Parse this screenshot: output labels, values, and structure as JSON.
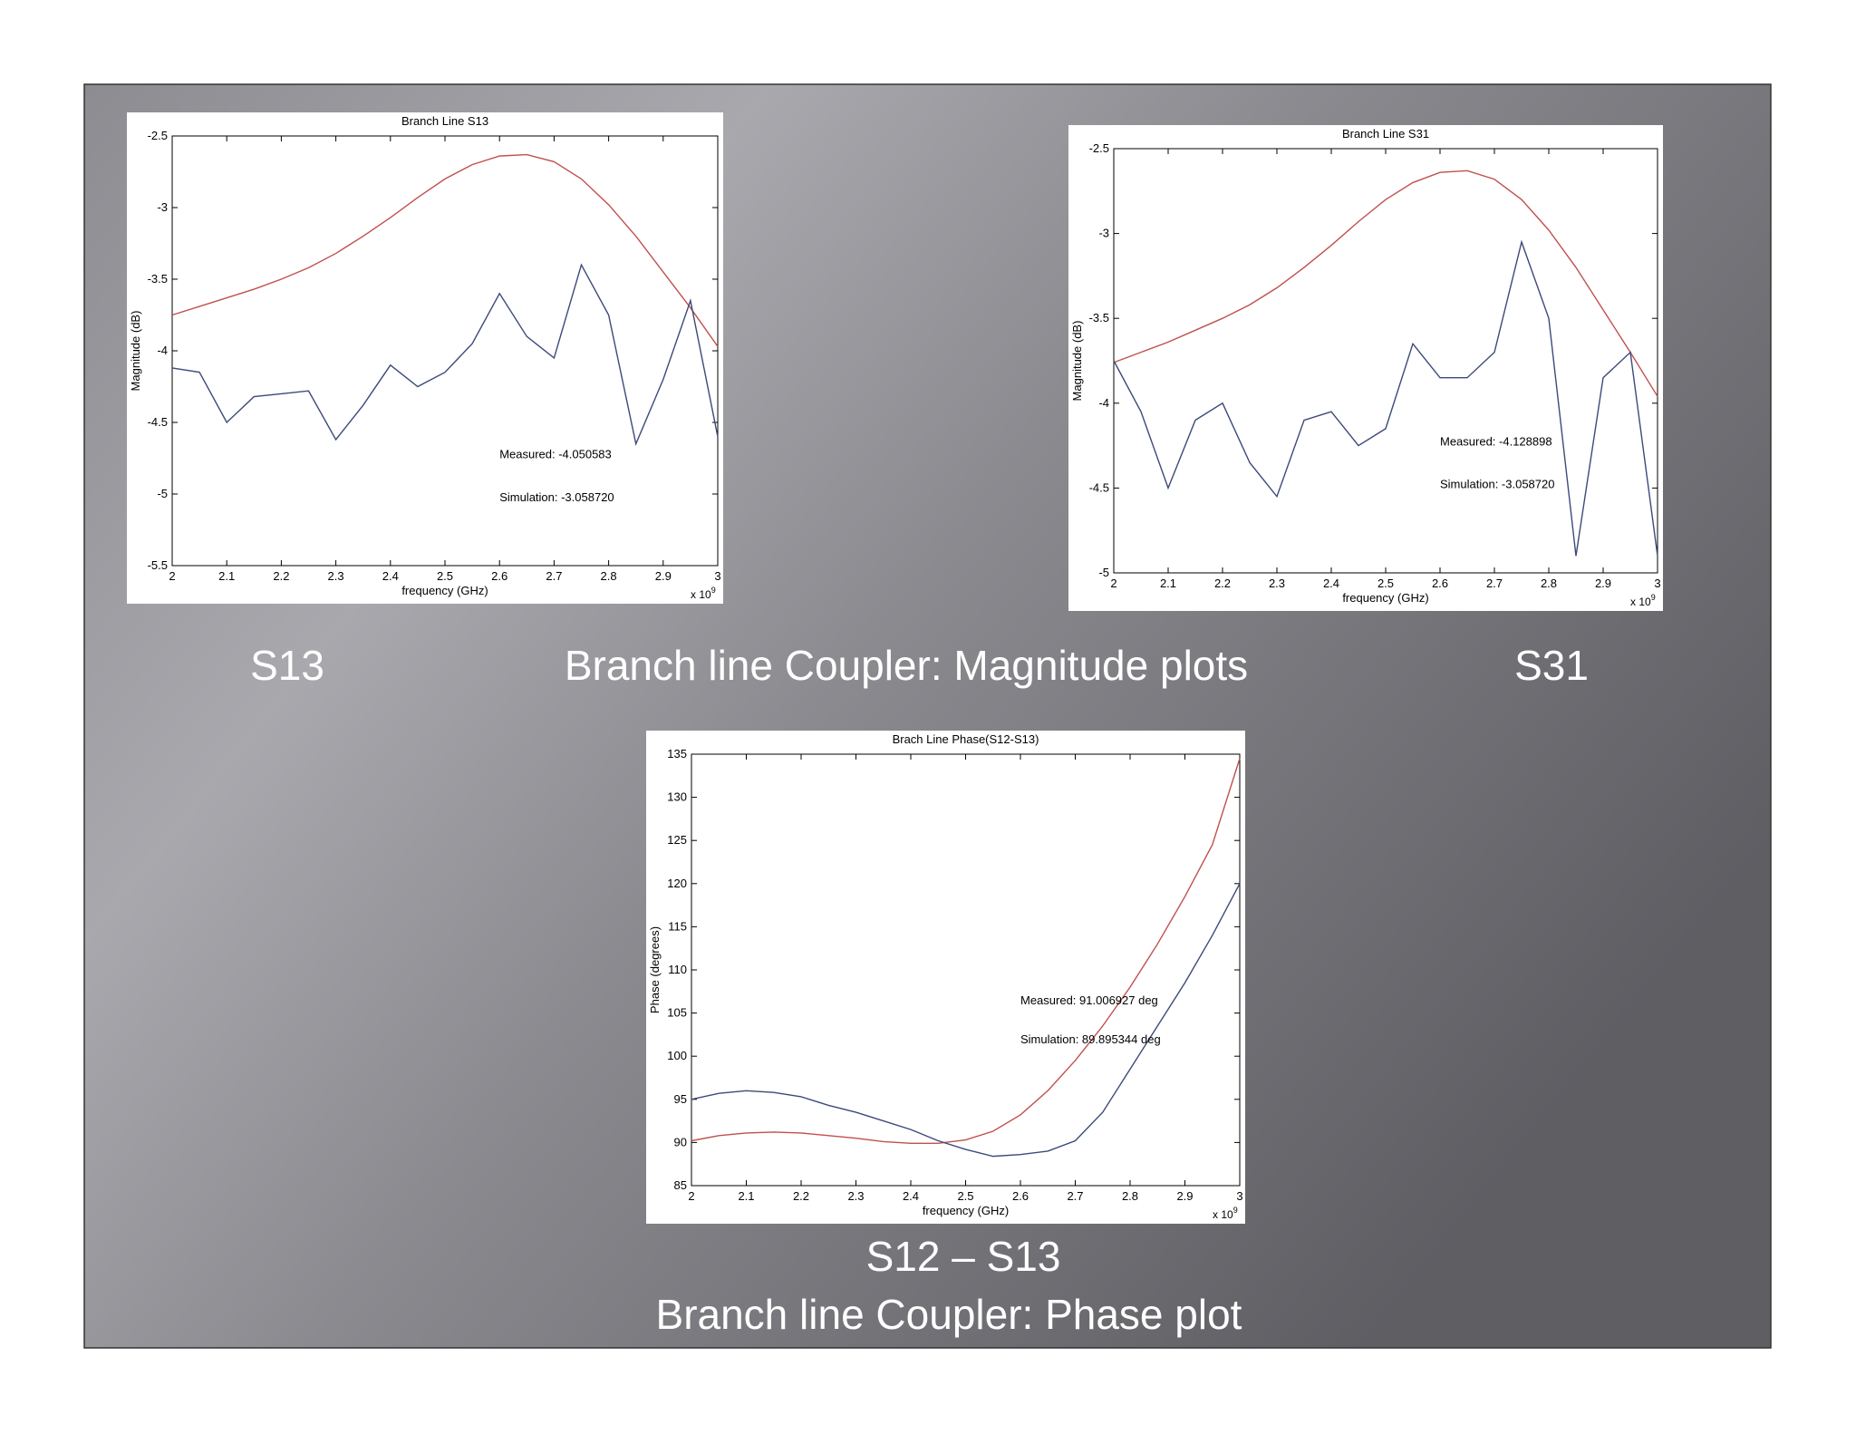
{
  "captions": {
    "left": "S13",
    "center": "Branch line Coupler: Magnitude plots",
    "right": "S31",
    "bottom_top": "S12 – S13",
    "bottom": "Branch line Coupler: Phase plot"
  },
  "chart_data": [
    {
      "type": "line",
      "title": "Branch Line S13",
      "xlabel": "frequency (GHz)",
      "ylabel": "Magnitude (dB)",
      "x_scale_label": "x 10",
      "x_scale_exponent": "9",
      "annotations": [
        "Measured: -4.050583",
        "Simulation: -3.058720"
      ],
      "xlim": [
        2,
        3
      ],
      "ylim": [
        -5.5,
        -2.5
      ],
      "xticks": [
        2,
        2.1,
        2.2,
        2.3,
        2.4,
        2.5,
        2.6,
        2.7,
        2.8,
        2.9,
        3
      ],
      "yticks": [
        -5.5,
        -5,
        -4.5,
        -4,
        -3.5,
        -3,
        -2.5
      ],
      "x": [
        2,
        2.05,
        2.1,
        2.15,
        2.2,
        2.25,
        2.3,
        2.35,
        2.4,
        2.45,
        2.5,
        2.55,
        2.6,
        2.65,
        2.7,
        2.75,
        2.8,
        2.85,
        2.9,
        2.95,
        3
      ],
      "series": [
        {
          "color": "#c0504d",
          "values": [
            -3.75,
            -3.69,
            -3.63,
            -3.57,
            -3.5,
            -3.42,
            -3.32,
            -3.2,
            -3.07,
            -2.93,
            -2.8,
            -2.7,
            -2.64,
            -2.63,
            -2.68,
            -2.8,
            -2.98,
            -3.2,
            -3.45,
            -3.7,
            -3.97
          ]
        },
        {
          "color": "#3c4a7a",
          "values": [
            -4.12,
            -4.15,
            -4.5,
            -4.32,
            -4.3,
            -4.28,
            -4.62,
            -4.38,
            -4.1,
            -4.25,
            -4.15,
            -3.95,
            -3.6,
            -3.9,
            -4.05,
            -3.4,
            -3.75,
            -4.65,
            -4.2,
            -3.65,
            -4.6
          ]
        }
      ]
    },
    {
      "type": "line",
      "title": "Branch Line S31",
      "xlabel": "frequency (GHz)",
      "ylabel": "Magnitude (dB)",
      "x_scale_label": "x 10",
      "x_scale_exponent": "9",
      "annotations": [
        "Measured: -4.128898",
        "Simulation: -3.058720"
      ],
      "xlim": [
        2,
        3
      ],
      "ylim": [
        -5,
        -2.5
      ],
      "xticks": [
        2,
        2.1,
        2.2,
        2.3,
        2.4,
        2.5,
        2.6,
        2.7,
        2.8,
        2.9,
        3
      ],
      "yticks": [
        -5,
        -4.5,
        -4,
        -3.5,
        -3,
        -2.5
      ],
      "x": [
        2,
        2.05,
        2.1,
        2.15,
        2.2,
        2.25,
        2.3,
        2.35,
        2.4,
        2.45,
        2.5,
        2.55,
        2.6,
        2.65,
        2.7,
        2.75,
        2.8,
        2.85,
        2.9,
        2.95,
        3
      ],
      "series": [
        {
          "color": "#c0504d",
          "values": [
            -3.76,
            -3.7,
            -3.64,
            -3.57,
            -3.5,
            -3.42,
            -3.32,
            -3.2,
            -3.07,
            -2.93,
            -2.8,
            -2.7,
            -2.64,
            -2.63,
            -2.68,
            -2.8,
            -2.98,
            -3.2,
            -3.45,
            -3.7,
            -3.96
          ]
        },
        {
          "color": "#3c4a7a",
          "values": [
            -3.75,
            -4.05,
            -4.5,
            -4.1,
            -4.0,
            -4.35,
            -4.55,
            -4.1,
            -4.05,
            -4.25,
            -4.15,
            -3.65,
            -3.85,
            -3.85,
            -3.7,
            -3.05,
            -3.5,
            -4.9,
            -3.85,
            -3.7,
            -4.9
          ]
        }
      ]
    },
    {
      "type": "line",
      "title": "Brach Line Phase(S12-S13)",
      "xlabel": "frequency (GHz)",
      "ylabel": "Phase (degrees)",
      "x_scale_label": "x 10",
      "x_scale_exponent": "9",
      "annotations": [
        "Measured: 91.006927 deg",
        "Simulation: 89.895344 deg"
      ],
      "xlim": [
        2,
        3
      ],
      "ylim": [
        85,
        135
      ],
      "xticks": [
        2,
        2.1,
        2.2,
        2.3,
        2.4,
        2.5,
        2.6,
        2.7,
        2.8,
        2.9,
        3
      ],
      "yticks": [
        85,
        90,
        95,
        100,
        105,
        110,
        115,
        120,
        125,
        130,
        135
      ],
      "x": [
        2,
        2.05,
        2.1,
        2.15,
        2.2,
        2.25,
        2.3,
        2.35,
        2.4,
        2.45,
        2.5,
        2.55,
        2.6,
        2.65,
        2.7,
        2.75,
        2.8,
        2.85,
        2.9,
        2.95,
        3
      ],
      "series": [
        {
          "color": "#c0504d",
          "values": [
            90.2,
            90.8,
            91.1,
            91.2,
            91.1,
            90.8,
            90.5,
            90.1,
            89.9,
            89.9,
            90.3,
            91.3,
            93.2,
            96,
            99.5,
            103.5,
            108,
            113,
            118.5,
            124.5,
            134.5
          ]
        },
        {
          "color": "#3c4a7a",
          "values": [
            95,
            95.7,
            96,
            95.8,
            95.3,
            94.3,
            93.5,
            92.5,
            91.5,
            90.2,
            89.2,
            88.4,
            88.6,
            89,
            90.2,
            93.5,
            98.5,
            103.5,
            108.5,
            114,
            120
          ]
        }
      ]
    }
  ]
}
